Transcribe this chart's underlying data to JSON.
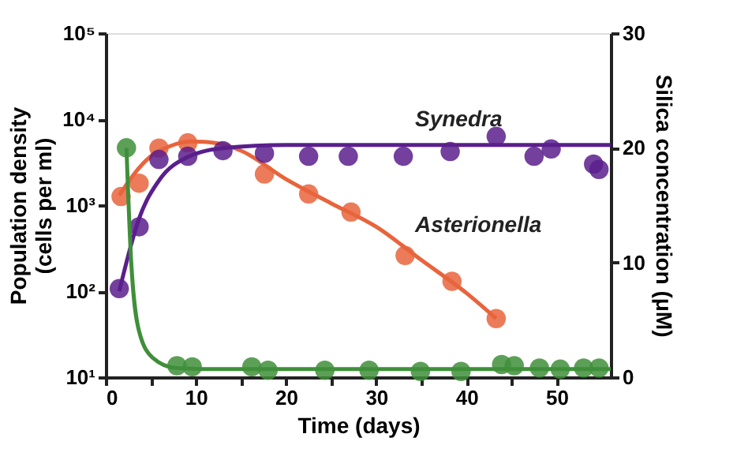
{
  "chart_data": {
    "type": "scatter",
    "xlabel": "Time (days)",
    "ylabel": "Population density\n(cells per ml)",
    "y2label": "Silica concentration (μM)",
    "xlim": [
      0,
      56
    ],
    "xticks": [
      0,
      {
        "value": 5,
        "label": null
      },
      10,
      {
        "value": 15,
        "label": null
      },
      20,
      {
        "value": 25,
        "label": null
      },
      30,
      {
        "value": 35,
        "label": null
      },
      40,
      {
        "value": 45,
        "label": null
      },
      50
    ],
    "ylim": [
      10,
      100000
    ],
    "yticks": [
      {
        "value": 10,
        "label": "10¹"
      },
      {
        "value": 100,
        "label": "10²"
      },
      {
        "value": 1000,
        "label": "10³"
      },
      {
        "value": 10000,
        "label": "10⁴"
      },
      {
        "value": 100000,
        "label": "10⁵"
      }
    ],
    "y2lim": [
      0,
      30
    ],
    "y2ticks": [
      0,
      10,
      20,
      30
    ],
    "log": "y",
    "grid": false,
    "line_style": "solid",
    "series": [
      {
        "marker": "circle",
        "color": "#e8643c",
        "x": [
          1.7,
          3.7,
          5.9,
          9.1,
          17.6,
          22.5,
          27.2,
          33.2,
          38.4,
          43.3
        ],
        "values": [
          1260,
          1800,
          4600,
          5300,
          2300,
          1350,
          830,
          260,
          130,
          48
        ]
      },
      {
        "type": "line",
        "marker": "none",
        "name": "Asterionella",
        "color": "#e8643c",
        "x": [
          1.5,
          3,
          5,
          7,
          9.5,
          12,
          15,
          20,
          25,
          30,
          35,
          40,
          43.3
        ],
        "values": [
          1300,
          2200,
          3700,
          4800,
          5500,
          5300,
          4300,
          2000,
          1050,
          560,
          230,
          95,
          48
        ]
      },
      {
        "marker": "circle",
        "color": "#5a1f8c",
        "x": [
          1.5,
          3.7,
          5.9,
          9.1,
          13,
          17.6,
          22.5,
          26.9,
          33,
          38.2,
          43.3,
          47.5,
          49.4,
          54.1,
          54.7
        ],
        "values": [
          107,
          560,
          3400,
          3700,
          4300,
          4000,
          3700,
          3700,
          3700,
          4200,
          6300,
          3700,
          4500,
          3000,
          2600
        ]
      },
      {
        "type": "line",
        "marker": "none",
        "name": "Synedra",
        "color": "#5a1f8c",
        "x": [
          1.5,
          3.7,
          6,
          9,
          13,
          20,
          30,
          40,
          56
        ],
        "values": [
          100,
          700,
          2000,
          3600,
          4600,
          5000,
          5000,
          5000,
          5000
        ]
      },
      {
        "marker": "circle",
        "color": "#3f8f3a",
        "axis": "y2",
        "x": [
          2.3,
          7.9,
          9.6,
          16.2,
          18,
          24.3,
          29.2,
          34.9,
          39.4,
          43.9,
          45.3,
          48.1,
          50.4,
          53,
          54.7
        ],
        "values": [
          20,
          1,
          0.9,
          0.9,
          0.6,
          0.6,
          0.6,
          0.5,
          0.5,
          1.1,
          1,
          0.8,
          0.7,
          0.8,
          0.8
        ]
      },
      {
        "type": "line",
        "marker": "none",
        "color": "#3f8f3a",
        "axis": "y2",
        "x": [
          2.3,
          2.8,
          3.7,
          5.2,
          7.8,
          12,
          56
        ],
        "values": [
          20,
          10.4,
          4,
          1.7,
          0.8,
          0.7,
          0.7
        ]
      }
    ]
  }
}
